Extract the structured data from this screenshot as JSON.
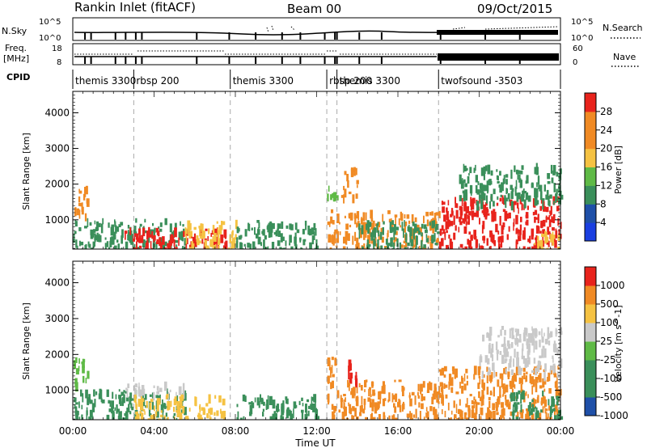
{
  "header": {
    "title": "Rankin Inlet (fitACF)",
    "beam": "Beam 00",
    "date": "09/Oct/2015"
  },
  "labels": {
    "nsky": "N.Sky",
    "nsearch": "N.Search",
    "freq_top": "Freq.",
    "freq_unit": "[MHz]",
    "nave": "Nave",
    "cpid": "CPID",
    "xlabel": "Time UT"
  },
  "colors": {
    "red": "#e8231c",
    "orange": "#f08a24",
    "yellow": "#f5c242",
    "lgreen": "#5fba46",
    "green": "#3a8f5a",
    "blue": "#1f50a8",
    "bright_blue": "#1a3fe0",
    "grey": "#c9c9c9",
    "dashed": "#aaaaaa"
  },
  "chart_data": [
    {
      "type": "line",
      "title": "N.Sky / N.Search",
      "y_tick_labels": [
        "10^0",
        "10^5"
      ],
      "right_tick_labels": [
        "10^0",
        "10^5"
      ],
      "series": [
        {
          "name": "N.Sky",
          "style": "solid"
        },
        {
          "name": "N.Search",
          "style": "dotted"
        }
      ]
    },
    {
      "type": "line",
      "title": "Freq. [MHz] / Nave",
      "y_tick_labels": [
        "8",
        "18"
      ],
      "right_tick_labels": [
        "0",
        "60"
      ],
      "series": [
        {
          "name": "Freq.",
          "style": "solid"
        },
        {
          "name": "Nave",
          "style": "dotted"
        }
      ]
    },
    {
      "type": "table",
      "title": "CPID",
      "segments": [
        {
          "label": "themis 3300",
          "start": 0.0,
          "end": 3.0
        },
        {
          "label": "rbsp 200",
          "start": 3.0,
          "end": 7.75
        },
        {
          "label": "themis 3300",
          "start": 7.75,
          "end": 12.5
        },
        {
          "label": "rbsp 200",
          "start": 12.5,
          "end": 13.0
        },
        {
          "label": "themis 3300",
          "start": 13.0,
          "end": 18.0
        },
        {
          "label": "twofsound -3503",
          "start": 18.0,
          "end": 24.0
        }
      ]
    },
    {
      "type": "heatmap",
      "ylabel": "Slant Range [km]",
      "xlabel": "Time UT",
      "x_range": [
        0,
        24
      ],
      "y_range": [
        180,
        4600
      ],
      "x_tick_labels": [
        "00:00",
        "04:00",
        "08:00",
        "12:00",
        "16:00",
        "20:00",
        "00:00"
      ],
      "y_tick_labels": [
        "1000",
        "2000",
        "3000",
        "4000"
      ],
      "mode_boundaries_hours": [
        3.0,
        7.75,
        12.5,
        13.0,
        18.0
      ],
      "colorbar": {
        "label": "Power [dB]",
        "tick_labels": [
          "4",
          "8",
          "12",
          "16",
          "20",
          "24",
          "28"
        ],
        "stops": [
          "bright_blue",
          "blue",
          "green",
          "lgreen",
          "yellow",
          "orange",
          "orange",
          "red"
        ]
      },
      "patches": [
        {
          "t0": 0.0,
          "t1": 0.7,
          "r0": 1150,
          "r1": 2050,
          "level": "orange"
        },
        {
          "t0": 0.0,
          "t1": 5.5,
          "r0": 180,
          "r1": 1050,
          "level": "green"
        },
        {
          "t0": 2.5,
          "t1": 7.5,
          "r0": 180,
          "r1": 800,
          "level": "red"
        },
        {
          "t0": 5.5,
          "t1": 8.0,
          "r0": 180,
          "r1": 1000,
          "level": "yellow"
        },
        {
          "t0": 8.0,
          "t1": 12.0,
          "r0": 180,
          "r1": 1000,
          "level": "green"
        },
        {
          "t0": 12.5,
          "t1": 13.0,
          "r0": 1650,
          "r1": 2050,
          "level": "lgreen"
        },
        {
          "t0": 13.2,
          "t1": 14.0,
          "r0": 1650,
          "r1": 2500,
          "level": "orange"
        },
        {
          "t0": 12.5,
          "t1": 18.0,
          "r0": 180,
          "r1": 1300,
          "level": "orange"
        },
        {
          "t0": 14.0,
          "t1": 18.0,
          "r0": 180,
          "r1": 1000,
          "level": "green"
        },
        {
          "t0": 18.0,
          "t1": 24.0,
          "r0": 180,
          "r1": 1700,
          "level": "red"
        },
        {
          "t0": 19.0,
          "t1": 24.0,
          "r0": 1500,
          "r1": 2600,
          "level": "green"
        },
        {
          "t0": 22.5,
          "t1": 24.0,
          "r0": 180,
          "r1": 700,
          "level": "yellow"
        }
      ]
    },
    {
      "type": "heatmap",
      "ylabel": "Slant Range [km]",
      "xlabel": "Time UT",
      "x_range": [
        0,
        24
      ],
      "y_range": [
        180,
        4600
      ],
      "x_tick_labels": [
        "00:00",
        "04:00",
        "08:00",
        "12:00",
        "16:00",
        "20:00",
        "00:00"
      ],
      "y_tick_labels": [
        "1000",
        "2000",
        "3000",
        "4000"
      ],
      "mode_boundaries_hours": [
        3.0,
        7.75,
        12.5,
        13.0,
        18.0
      ],
      "colorbar": {
        "label": "Velocity [m s^-1]",
        "tick_labels": [
          "1000",
          "500",
          "100",
          "25",
          "-25",
          "-100",
          "-500",
          "-1000"
        ],
        "stops": [
          "blue",
          "green",
          "green",
          "lgreen",
          "grey",
          "yellow",
          "orange",
          "red"
        ]
      },
      "patches": [
        {
          "t0": 0.0,
          "t1": 0.7,
          "r0": 1150,
          "r1": 2000,
          "level": "lgreen"
        },
        {
          "t0": 0.0,
          "t1": 5.5,
          "r0": 180,
          "r1": 1050,
          "level": "green"
        },
        {
          "t0": 2.5,
          "t1": 5.5,
          "r0": 950,
          "r1": 1250,
          "level": "grey"
        },
        {
          "t0": 3.0,
          "t1": 7.5,
          "r0": 180,
          "r1": 900,
          "level": "yellow"
        },
        {
          "t0": 8.0,
          "t1": 12.0,
          "r0": 180,
          "r1": 900,
          "level": "green"
        },
        {
          "t0": 12.5,
          "t1": 13.0,
          "r0": 1200,
          "r1": 2000,
          "level": "orange"
        },
        {
          "t0": 13.5,
          "t1": 14.0,
          "r0": 1200,
          "r1": 2000,
          "level": "red"
        },
        {
          "t0": 12.5,
          "t1": 18.0,
          "r0": 180,
          "r1": 1300,
          "level": "orange"
        },
        {
          "t0": 18.0,
          "t1": 24.0,
          "r0": 180,
          "r1": 1700,
          "level": "orange"
        },
        {
          "t0": 20.0,
          "t1": 24.0,
          "r0": 1500,
          "r1": 2800,
          "level": "grey"
        },
        {
          "t0": 21.5,
          "t1": 24.0,
          "r0": 180,
          "r1": 1000,
          "level": "green"
        }
      ]
    }
  ]
}
